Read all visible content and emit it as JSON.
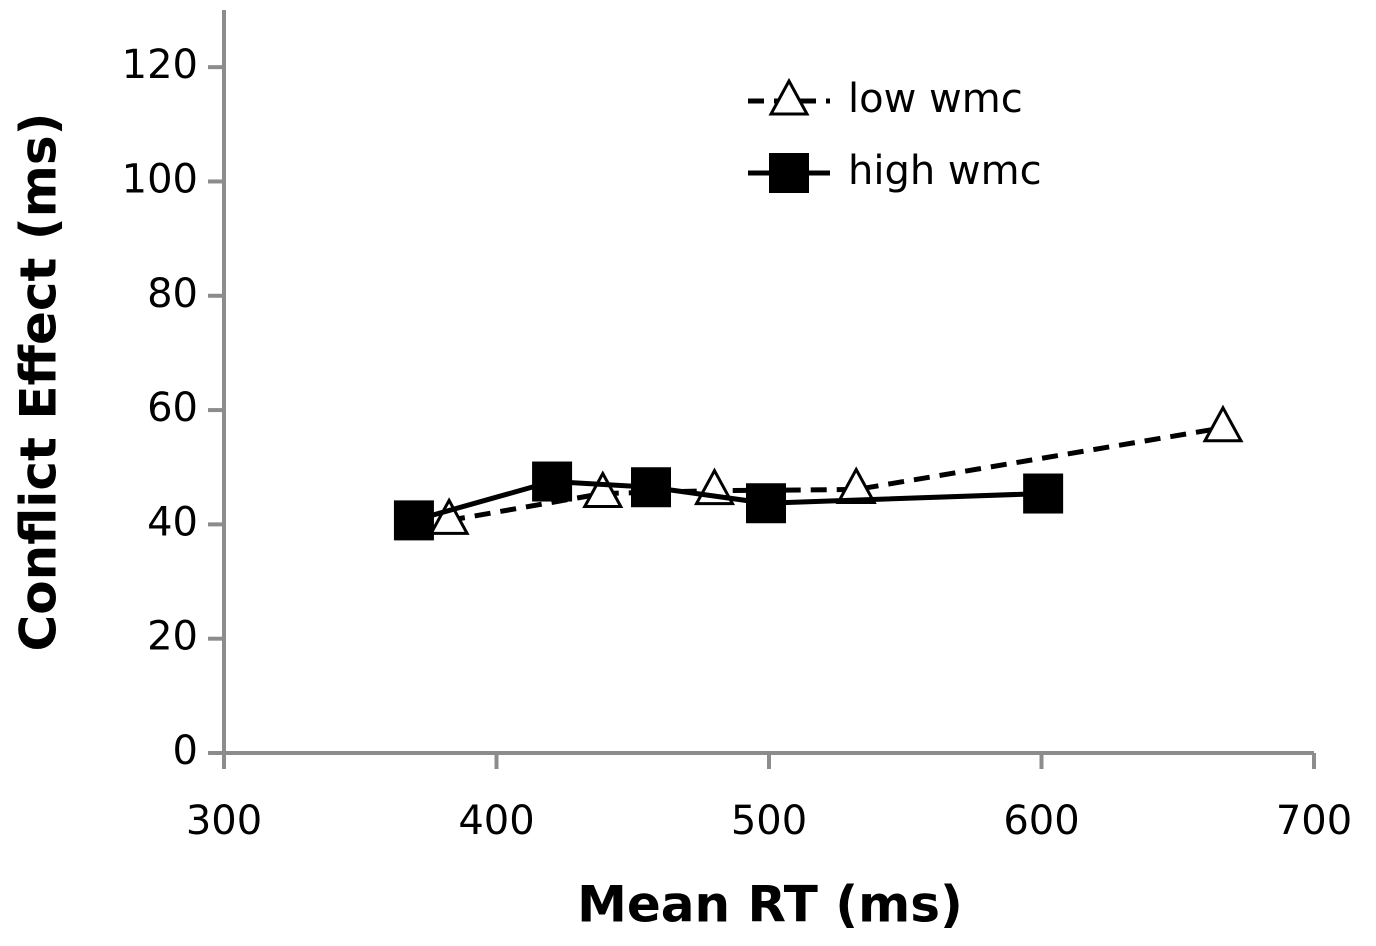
{
  "chart_data": {
    "type": "line",
    "xlabel": "Mean RT (ms)",
    "ylabel": "Conflict Effect (ms)",
    "xlim": [
      300,
      700
    ],
    "xticks": [
      300,
      400,
      500,
      600,
      700
    ],
    "ylim": [
      0,
      130
    ],
    "yticks": [
      0,
      20,
      40,
      60,
      80,
      100,
      120
    ],
    "legend": "top-right",
    "series": [
      {
        "name": "low wmc",
        "color": "#000000",
        "line_style": "dashed",
        "marker": "triangle",
        "x": [
          382.6,
          439,
          480,
          532,
          666.6
        ],
        "values": [
          40.7,
          45.4,
          45.9,
          46.1,
          56.9
        ]
      },
      {
        "name": "high wmc",
        "color": "#000000",
        "line_style": "solid",
        "marker": "square",
        "x": [
          369.7,
          420.4,
          456.7,
          498.9,
          600.6
        ],
        "values": [
          40.7,
          47.5,
          46.5,
          43.7,
          45.4
        ]
      }
    ]
  }
}
